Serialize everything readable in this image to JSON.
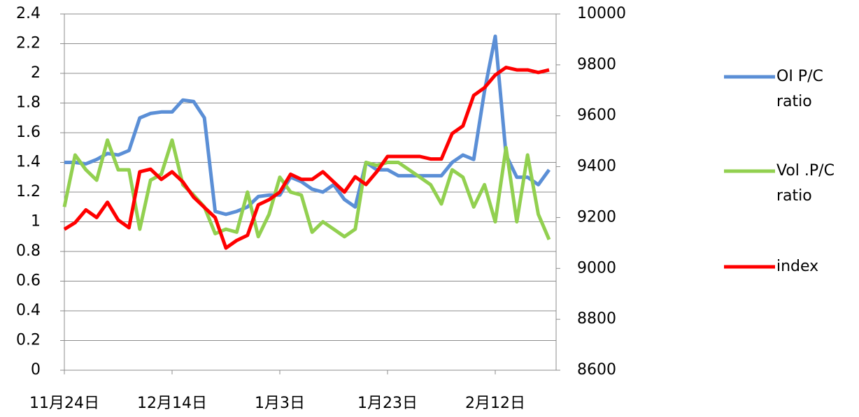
{
  "chart_data": {
    "type": "line",
    "categories": [
      "11月24日",
      null,
      null,
      null,
      null,
      null,
      null,
      null,
      null,
      null,
      "12月14日",
      null,
      null,
      null,
      null,
      null,
      null,
      null,
      null,
      null,
      "1月3日",
      null,
      null,
      null,
      null,
      null,
      null,
      null,
      null,
      null,
      "1月23日",
      null,
      null,
      null,
      null,
      null,
      null,
      null,
      null,
      null,
      "2月12日",
      null,
      null,
      null,
      null,
      null
    ],
    "series": [
      {
        "name": "OI P/C ratio",
        "color": "#5b8fd6",
        "axis": "y",
        "values": [
          1.4,
          1.4,
          1.39,
          1.42,
          1.46,
          1.45,
          1.48,
          1.7,
          1.73,
          1.74,
          1.74,
          1.82,
          1.81,
          1.7,
          1.07,
          1.05,
          1.07,
          1.1,
          1.17,
          1.18,
          1.18,
          1.3,
          1.27,
          1.22,
          1.2,
          1.25,
          1.15,
          1.1,
          1.4,
          1.35,
          1.35,
          1.31,
          1.31,
          1.31,
          1.31,
          1.31,
          1.4,
          1.45,
          1.42,
          1.88,
          2.25,
          1.45,
          1.3,
          1.3,
          1.25,
          1.35
        ]
      },
      {
        "name": "Vol .P/C ratio",
        "color": "#92d050",
        "axis": "y",
        "values": [
          1.1,
          1.45,
          1.35,
          1.28,
          1.55,
          1.35,
          1.35,
          0.95,
          1.28,
          1.32,
          1.55,
          1.25,
          1.18,
          1.1,
          0.92,
          0.95,
          0.93,
          1.2,
          0.9,
          1.05,
          1.3,
          1.2,
          1.18,
          0.93,
          1.0,
          0.95,
          0.9,
          0.95,
          1.4,
          1.38,
          1.4,
          1.4,
          1.35,
          1.3,
          1.25,
          1.12,
          1.35,
          1.3,
          1.1,
          1.25,
          1.0,
          1.5,
          1.0,
          1.45,
          1.05,
          0.88
        ]
      },
      {
        "name": "index",
        "color": "#ff0000",
        "axis": "y2",
        "values": [
          9154,
          9180,
          9230,
          9200,
          9260,
          9190,
          9160,
          9380,
          9390,
          9350,
          9380,
          9340,
          9280,
          9240,
          9200,
          9080,
          9110,
          9130,
          9250,
          9270,
          9300,
          9370,
          9350,
          9350,
          9380,
          9340,
          9300,
          9360,
          9330,
          9380,
          9440,
          9440,
          9440,
          9440,
          9430,
          9430,
          9530,
          9560,
          9680,
          9710,
          9760,
          9790,
          9780,
          9780,
          9770,
          9780
        ]
      }
    ],
    "ylim": [
      0,
      2.4
    ],
    "yticks": [
      0,
      0.2,
      0.4,
      0.6,
      0.8,
      1,
      1.2,
      1.4,
      1.6,
      1.8,
      2,
      2.2,
      2.4
    ],
    "y2lim": [
      8600,
      10000
    ],
    "y2ticks": [
      8600,
      8800,
      9000,
      9200,
      9400,
      9600,
      9800,
      10000
    ],
    "grid": true
  }
}
